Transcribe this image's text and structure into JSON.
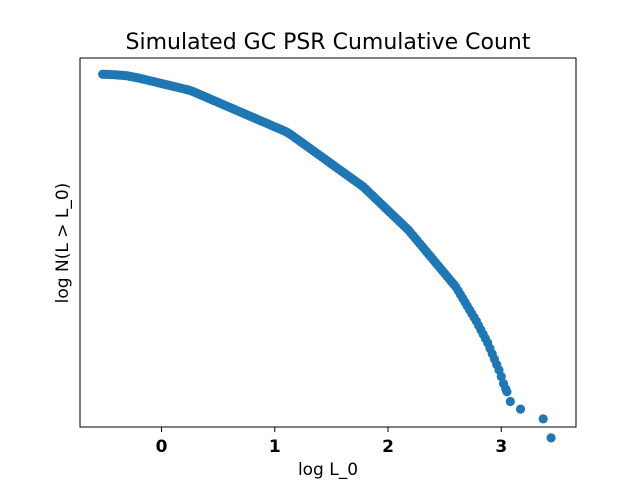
{
  "chart_data": {
    "type": "scatter",
    "title": "Simulated GC PSR Cumulative Count",
    "xlabel": "log L_0",
    "ylabel": "log N(L > L_0)",
    "xlim": [
      -0.72,
      3.66
    ],
    "ylim": [
      0.05,
      6.85
    ],
    "x_ticks": [
      0,
      1,
      2,
      3
    ],
    "x_tick_labels": [
      "0",
      "1",
      "2",
      "3"
    ],
    "y_ticks": [],
    "grid": false,
    "legend": "none",
    "series_color": "#1f77b4",
    "points": [
      [
        -0.52,
        6.55
      ],
      [
        -0.5,
        6.549
      ],
      [
        -0.48,
        6.548
      ],
      [
        -0.46,
        6.547
      ],
      [
        -0.44,
        6.545
      ],
      [
        -0.42,
        6.542
      ],
      [
        -0.4,
        6.539
      ],
      [
        -0.38,
        6.536
      ],
      [
        -0.36,
        6.533
      ],
      [
        -0.34,
        6.53
      ],
      [
        -0.32,
        6.525
      ],
      [
        -0.3,
        6.52
      ],
      [
        -0.28,
        6.512
      ],
      [
        -0.26,
        6.504
      ],
      [
        -0.24,
        6.496
      ],
      [
        -0.22,
        6.488
      ],
      [
        -0.2,
        6.48
      ],
      [
        -0.18,
        6.47
      ],
      [
        -0.16,
        6.46
      ],
      [
        -0.14,
        6.45
      ],
      [
        -0.12,
        6.44
      ],
      [
        -0.1,
        6.43
      ],
      [
        -0.08,
        6.42
      ],
      [
        -0.06,
        6.41
      ],
      [
        -0.04,
        6.4
      ],
      [
        -0.02,
        6.39
      ],
      [
        0.0,
        6.38
      ],
      [
        0.02,
        6.37
      ],
      [
        0.04,
        6.36
      ],
      [
        0.06,
        6.35
      ],
      [
        0.08,
        6.34
      ],
      [
        0.1,
        6.33
      ],
      [
        0.12,
        6.32
      ],
      [
        0.14,
        6.31
      ],
      [
        0.16,
        6.3
      ],
      [
        0.18,
        6.29
      ],
      [
        0.2,
        6.28
      ],
      [
        0.22,
        6.27
      ],
      [
        0.24,
        6.26
      ],
      [
        0.26,
        6.245
      ],
      [
        0.28,
        6.23
      ],
      [
        0.3,
        6.212
      ],
      [
        0.32,
        6.194
      ],
      [
        0.34,
        6.176
      ],
      [
        0.36,
        6.158
      ],
      [
        0.38,
        6.14
      ],
      [
        0.4,
        6.122
      ],
      [
        0.42,
        6.104
      ],
      [
        0.44,
        6.086
      ],
      [
        0.46,
        6.068
      ],
      [
        0.48,
        6.05
      ],
      [
        0.5,
        6.032
      ],
      [
        0.52,
        6.014
      ],
      [
        0.54,
        5.996
      ],
      [
        0.56,
        5.978
      ],
      [
        0.58,
        5.96
      ],
      [
        0.6,
        5.942
      ],
      [
        0.62,
        5.924
      ],
      [
        0.64,
        5.906
      ],
      [
        0.66,
        5.888
      ],
      [
        0.68,
        5.87
      ],
      [
        0.7,
        5.852
      ],
      [
        0.72,
        5.834
      ],
      [
        0.74,
        5.816
      ],
      [
        0.76,
        5.798
      ],
      [
        0.78,
        5.78
      ],
      [
        0.8,
        5.762
      ],
      [
        0.82,
        5.744
      ],
      [
        0.84,
        5.726
      ],
      [
        0.86,
        5.708
      ],
      [
        0.88,
        5.69
      ],
      [
        0.9,
        5.672
      ],
      [
        0.92,
        5.654
      ],
      [
        0.94,
        5.636
      ],
      [
        0.96,
        5.618
      ],
      [
        0.98,
        5.6
      ],
      [
        1.0,
        5.582
      ],
      [
        1.02,
        5.564
      ],
      [
        1.04,
        5.546
      ],
      [
        1.06,
        5.528
      ],
      [
        1.08,
        5.51
      ],
      [
        1.1,
        5.492
      ],
      [
        1.12,
        5.466
      ],
      [
        1.14,
        5.44
      ],
      [
        1.16,
        5.41
      ],
      [
        1.18,
        5.38
      ],
      [
        1.2,
        5.35
      ],
      [
        1.22,
        5.32
      ],
      [
        1.24,
        5.29
      ],
      [
        1.26,
        5.26
      ],
      [
        1.28,
        5.23
      ],
      [
        1.3,
        5.2
      ],
      [
        1.32,
        5.17
      ],
      [
        1.34,
        5.14
      ],
      [
        1.36,
        5.11
      ],
      [
        1.38,
        5.08
      ],
      [
        1.4,
        5.05
      ],
      [
        1.42,
        5.02
      ],
      [
        1.44,
        4.99
      ],
      [
        1.46,
        4.96
      ],
      [
        1.48,
        4.93
      ],
      [
        1.5,
        4.9
      ],
      [
        1.52,
        4.87
      ],
      [
        1.54,
        4.84
      ],
      [
        1.56,
        4.81
      ],
      [
        1.58,
        4.78
      ],
      [
        1.6,
        4.75
      ],
      [
        1.62,
        4.72
      ],
      [
        1.64,
        4.69
      ],
      [
        1.66,
        4.66
      ],
      [
        1.68,
        4.63
      ],
      [
        1.7,
        4.6
      ],
      [
        1.72,
        4.57
      ],
      [
        1.74,
        4.54
      ],
      [
        1.76,
        4.51
      ],
      [
        1.78,
        4.48
      ],
      [
        1.8,
        4.44
      ],
      [
        1.82,
        4.4
      ],
      [
        1.84,
        4.36
      ],
      [
        1.86,
        4.32
      ],
      [
        1.88,
        4.28
      ],
      [
        1.9,
        4.24
      ],
      [
        1.92,
        4.2
      ],
      [
        1.94,
        4.16
      ],
      [
        1.96,
        4.12
      ],
      [
        1.98,
        4.08
      ],
      [
        2.0,
        4.04
      ],
      [
        2.02,
        4.0
      ],
      [
        2.04,
        3.96
      ],
      [
        2.06,
        3.92
      ],
      [
        2.08,
        3.88
      ],
      [
        2.1,
        3.84
      ],
      [
        2.12,
        3.8
      ],
      [
        2.14,
        3.76
      ],
      [
        2.16,
        3.72
      ],
      [
        2.18,
        3.68
      ],
      [
        2.2,
        3.63
      ],
      [
        2.22,
        3.58
      ],
      [
        2.24,
        3.53
      ],
      [
        2.26,
        3.48
      ],
      [
        2.28,
        3.43
      ],
      [
        2.3,
        3.38
      ],
      [
        2.32,
        3.33
      ],
      [
        2.34,
        3.28
      ],
      [
        2.36,
        3.23
      ],
      [
        2.38,
        3.18
      ],
      [
        2.4,
        3.13
      ],
      [
        2.42,
        3.08
      ],
      [
        2.44,
        3.03
      ],
      [
        2.46,
        2.98
      ],
      [
        2.48,
        2.93
      ],
      [
        2.5,
        2.88
      ],
      [
        2.52,
        2.83
      ],
      [
        2.54,
        2.78
      ],
      [
        2.56,
        2.73
      ],
      [
        2.58,
        2.68
      ],
      [
        2.6,
        2.63
      ],
      [
        2.62,
        2.56
      ],
      [
        2.64,
        2.49
      ],
      [
        2.66,
        2.42
      ],
      [
        2.68,
        2.35
      ],
      [
        2.7,
        2.28
      ],
      [
        2.72,
        2.21
      ],
      [
        2.74,
        2.14
      ],
      [
        2.76,
        2.07
      ],
      [
        2.78,
        2.0
      ],
      [
        2.8,
        1.92
      ],
      [
        2.82,
        1.84
      ],
      [
        2.84,
        1.76
      ],
      [
        2.86,
        1.68
      ],
      [
        2.88,
        1.6
      ],
      [
        2.9,
        1.5
      ],
      [
        2.92,
        1.4
      ],
      [
        2.94,
        1.3
      ],
      [
        2.96,
        1.2
      ],
      [
        2.98,
        1.1
      ],
      [
        3.0,
        0.98
      ],
      [
        3.02,
        0.85
      ],
      [
        3.04,
        0.75
      ],
      [
        3.05,
        0.7
      ],
      [
        3.08,
        0.52
      ],
      [
        3.17,
        0.38
      ],
      [
        3.37,
        0.2
      ],
      [
        3.44,
        -0.15
      ]
    ]
  }
}
